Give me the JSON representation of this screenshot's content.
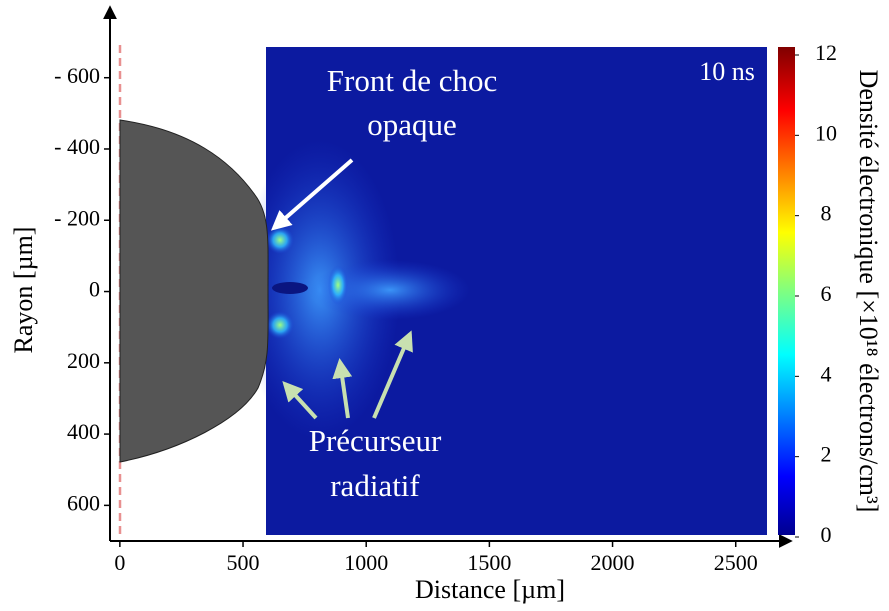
{
  "chart_data": {
    "type": "heatmap",
    "x_label": "Distance [µm]",
    "y_label": "Rayon [µm]",
    "xlim": [
      -40,
      2700
    ],
    "xticks": [
      0,
      500,
      1000,
      1500,
      2000,
      2500
    ],
    "ylim": [
      700,
      -790
    ],
    "yticks": [
      {
        "value": -600,
        "label": "- 600"
      },
      {
        "value": -400,
        "label": "- 400"
      },
      {
        "value": -200,
        "label": "- 200"
      },
      0,
      200,
      400,
      600
    ],
    "colorbar": {
      "label": "Densité électronique [×10¹⁸ électrons/cm³]",
      "lim": [
        0,
        12
      ],
      "ticks": [
        0,
        2,
        4,
        6,
        8,
        10,
        12
      ]
    },
    "annotations": {
      "time": "10 ns",
      "shock_line1": "Front de choc",
      "shock_line2": "opaque",
      "precursor_line1": "Précurseur",
      "precursor_line2": "radiatif"
    }
  }
}
